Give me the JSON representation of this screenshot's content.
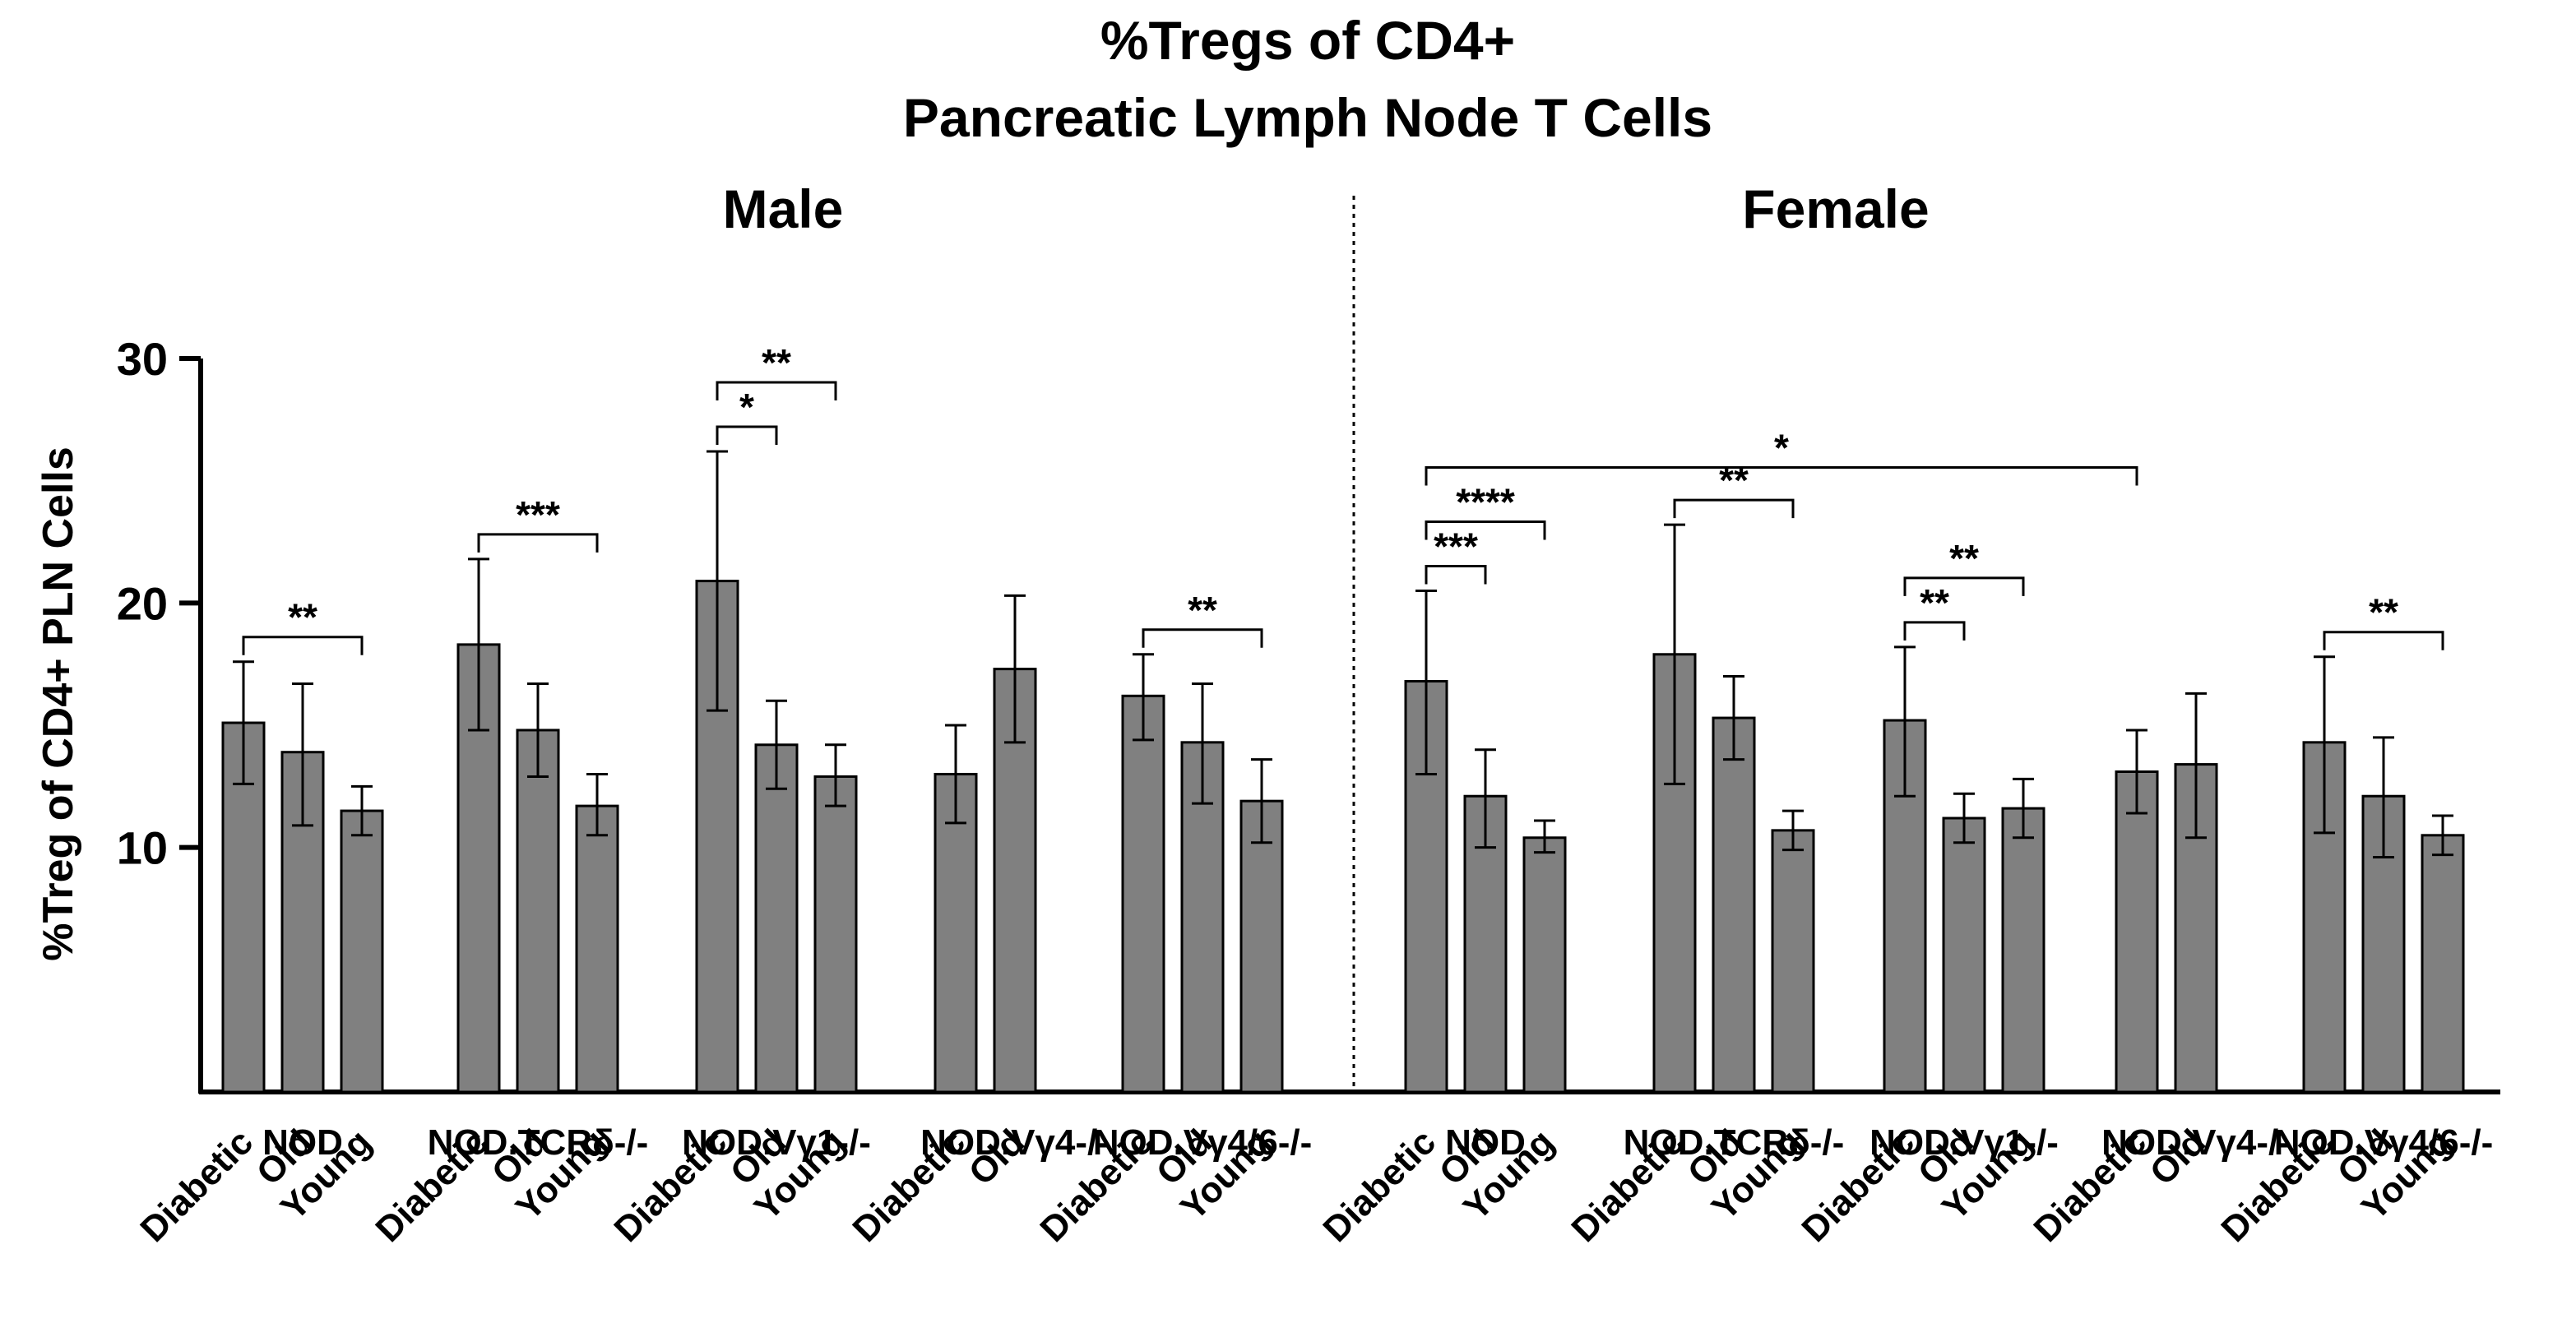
{
  "chart_data": {
    "type": "bar",
    "title": "%Tregs of CD4+",
    "subtitle": "Pancreatic Lymph Node T Cells",
    "ylabel": "%Treg of CD4+ PLN Cells",
    "xlabel": "",
    "ylim": [
      0,
      30
    ],
    "yticks": [
      10,
      20,
      30
    ],
    "bar_color": "#808080",
    "panels": [
      {
        "label": "Male",
        "groups": [
          {
            "name": "NOD",
            "bars": [
              {
                "category": "Diabetic",
                "value": 15.1,
                "err_low": 12.6,
                "err_high": 17.6
              },
              {
                "category": "Old",
                "value": 13.9,
                "err_low": 10.9,
                "err_high": 16.7
              },
              {
                "category": "Young",
                "value": 11.5,
                "err_low": 10.5,
                "err_high": 12.5
              }
            ]
          },
          {
            "name": "NOD.TCRδ-/-",
            "bars": [
              {
                "category": "Diabetic",
                "value": 18.3,
                "err_low": 14.8,
                "err_high": 21.8
              },
              {
                "category": "Old",
                "value": 14.8,
                "err_low": 12.9,
                "err_high": 16.7
              },
              {
                "category": "Young",
                "value": 11.7,
                "err_low": 10.5,
                "err_high": 13.0
              }
            ]
          },
          {
            "name": "NOD.Vγ1-/-",
            "bars": [
              {
                "category": "Diabetic",
                "value": 20.9,
                "err_low": 15.6,
                "err_high": 26.2
              },
              {
                "category": "Old",
                "value": 14.2,
                "err_low": 12.4,
                "err_high": 16.0
              },
              {
                "category": "Young",
                "value": 12.9,
                "err_low": 11.7,
                "err_high": 14.2
              }
            ]
          },
          {
            "name": "NOD.Vγ4-/-",
            "bars": [
              {
                "category": "Diabetic",
                "value": 13.0,
                "err_low": 11.0,
                "err_high": 15.0
              },
              {
                "category": "Old",
                "value": 17.3,
                "err_low": 14.3,
                "err_high": 20.3
              }
            ]
          },
          {
            "name": "NOD.Vγ4/6-/-",
            "bars": [
              {
                "category": "Diabetic",
                "value": 16.2,
                "err_low": 14.4,
                "err_high": 17.9
              },
              {
                "category": "Old",
                "value": 14.3,
                "err_low": 11.8,
                "err_high": 16.7
              },
              {
                "category": "Young",
                "value": 11.9,
                "err_low": 10.2,
                "err_high": 13.6
              }
            ]
          }
        ]
      },
      {
        "label": "Female",
        "groups": [
          {
            "name": "NOD",
            "bars": [
              {
                "category": "Diabetic",
                "value": 16.8,
                "err_low": 13.0,
                "err_high": 20.5
              },
              {
                "category": "Old",
                "value": 12.1,
                "err_low": 10.0,
                "err_high": 14.0
              },
              {
                "category": "Young",
                "value": 10.4,
                "err_low": 9.8,
                "err_high": 11.1
              }
            ]
          },
          {
            "name": "NOD.TCRδ-/-",
            "bars": [
              {
                "category": "Diabetic",
                "value": 17.9,
                "err_low": 12.6,
                "err_high": 23.2
              },
              {
                "category": "Old",
                "value": 15.3,
                "err_low": 13.6,
                "err_high": 17.0
              },
              {
                "category": "Young",
                "value": 10.7,
                "err_low": 9.9,
                "err_high": 11.5
              }
            ]
          },
          {
            "name": "NOD.Vγ1-/-",
            "bars": [
              {
                "category": "Diabetic",
                "value": 15.2,
                "err_low": 12.1,
                "err_high": 18.2
              },
              {
                "category": "Old",
                "value": 11.2,
                "err_low": 10.2,
                "err_high": 12.2
              },
              {
                "category": "Young",
                "value": 11.6,
                "err_low": 10.4,
                "err_high": 12.8
              }
            ]
          },
          {
            "name": "NOD.Vγ4-/-",
            "bars": [
              {
                "category": "Diabetic",
                "value": 13.1,
                "err_low": 11.4,
                "err_high": 14.8
              },
              {
                "category": "Old",
                "value": 13.4,
                "err_low": 10.4,
                "err_high": 16.3
              }
            ]
          },
          {
            "name": "NOD.Vγ4/6-/-",
            "bars": [
              {
                "category": "Diabetic",
                "value": 14.3,
                "err_low": 10.6,
                "err_high": 17.8
              },
              {
                "category": "Old",
                "value": 12.1,
                "err_low": 9.6,
                "err_high": 14.5
              },
              {
                "category": "Young",
                "value": 10.5,
                "err_low": 9.7,
                "err_high": 11.3
              }
            ]
          }
        ]
      }
    ],
    "significance": [
      {
        "panel": 0,
        "group": 0,
        "from": 0,
        "to": 2,
        "label": "**"
      },
      {
        "panel": 0,
        "group": 1,
        "from": 0,
        "to": 2,
        "label": "***"
      },
      {
        "panel": 0,
        "group": 2,
        "from": 0,
        "to": 1,
        "label": "*"
      },
      {
        "panel": 0,
        "group": 2,
        "from": 0,
        "to": 2,
        "label": "**"
      },
      {
        "panel": 0,
        "group": 4,
        "from": 0,
        "to": 2,
        "label": "**"
      },
      {
        "panel": 1,
        "group": 0,
        "from": 0,
        "to": 1,
        "label": "***"
      },
      {
        "panel": 1,
        "group": 0,
        "from": 0,
        "to": 2,
        "label": "****"
      },
      {
        "panel": 1,
        "group": 1,
        "from": 0,
        "to": 2,
        "label": "**"
      },
      {
        "panel": 1,
        "group": 2,
        "from": 0,
        "to": 1,
        "label": "**"
      },
      {
        "panel": 1,
        "group": 2,
        "from": 0,
        "to": 2,
        "label": "**"
      },
      {
        "panel": 1,
        "group": 4,
        "from": 0,
        "to": 2,
        "label": "**"
      },
      {
        "panel": 1,
        "group": 0,
        "bar": 0,
        "to_group": 3,
        "to_bar": 0,
        "label": "*",
        "span": "between-groups"
      }
    ]
  }
}
